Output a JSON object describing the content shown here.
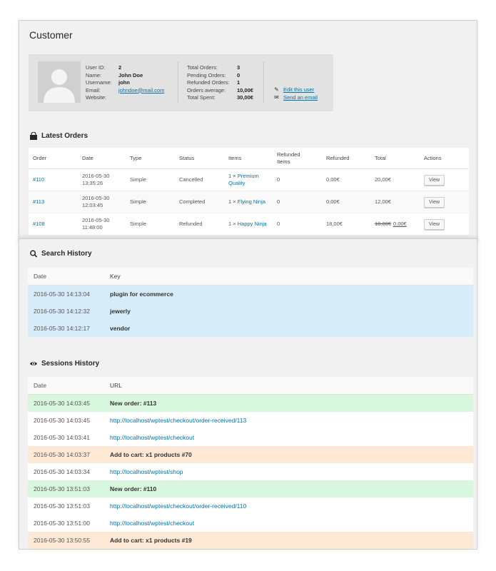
{
  "customer": {
    "title": "Customer",
    "info": [
      {
        "label": "User ID:",
        "value": "2"
      },
      {
        "label": "Name:",
        "value": "John Doe"
      },
      {
        "label": "Username:",
        "value": "john"
      },
      {
        "label": "Email:",
        "value": "johndoe@mail.com"
      },
      {
        "label": "Website:",
        "value": ""
      }
    ],
    "stats": [
      {
        "label": "Total Orders:",
        "value": "3"
      },
      {
        "label": "Pending Orders:",
        "value": "0"
      },
      {
        "label": "Refunded Orders:",
        "value": "1"
      },
      {
        "label": "Orders average:",
        "value": "10,00€"
      },
      {
        "label": "Total Spent:",
        "value": "30,00€"
      }
    ],
    "actions": {
      "edit_label": "Edit this user",
      "email_label": "Send an email"
    }
  },
  "latest_orders": {
    "heading": "Latest Orders",
    "columns": [
      "Order",
      "Date",
      "Type",
      "Status",
      "Items",
      "Refunded Items",
      "Refunded",
      "Total",
      "Actions"
    ],
    "rows": [
      {
        "order": "#110",
        "date": "2016-05-30",
        "time": "13:35:26",
        "type": "Simple",
        "status": "Cancelled",
        "qty": "1 ×",
        "item": "Premium Quality",
        "refunded_items": "0",
        "refunded": "0,00€",
        "total": "20,00€",
        "total_old": "",
        "action": "View"
      },
      {
        "order": "#113",
        "date": "2016-05-30",
        "time": "12:03:45",
        "type": "Simple",
        "status": "Completed",
        "qty": "1 ×",
        "item": "Flying Ninja",
        "refunded_items": "0",
        "refunded": "0,00€",
        "total": "12,00€",
        "total_old": "",
        "action": "View"
      },
      {
        "order": "#108",
        "date": "2016-05-30",
        "time": "11:48:00",
        "type": "Simple",
        "status": "Refunded",
        "qty": "1 ×",
        "item": "Happy Ninja",
        "refunded_items": "0",
        "refunded": "18,00€",
        "total": "0,00€",
        "total_old": "18,00€",
        "action": "View"
      }
    ]
  },
  "search_history": {
    "heading": "Search History",
    "columns": [
      "Date",
      "Key"
    ],
    "rows": [
      {
        "date": "2016-05-30 14:13:04",
        "key": "plugin for ecommerce"
      },
      {
        "date": "2016-05-30 14:12:32",
        "key": "jewerly"
      },
      {
        "date": "2016-05-30 14:12:17",
        "key": "vendor"
      }
    ]
  },
  "sessions_history": {
    "heading": "Sessions History",
    "columns": [
      "Date",
      "URL"
    ],
    "rows": [
      {
        "date": "2016-05-30 14:03:45",
        "url": "New order: #113",
        "kind": "order"
      },
      {
        "date": "2016-05-30 14:03:45",
        "url": "http://localhost/wptest/checkout/order-received/113",
        "kind": "link"
      },
      {
        "date": "2016-05-30 14:03:41",
        "url": "http://localhost/wptest/checkout",
        "kind": "link"
      },
      {
        "date": "2016-05-30 14:03:37",
        "url": "Add to cart: x1 products #70",
        "kind": "cart"
      },
      {
        "date": "2016-05-30 14:03:34",
        "url": "http://localhost/wptest/shop",
        "kind": "link"
      },
      {
        "date": "2016-05-30 13:51:03",
        "url": "New order: #110",
        "kind": "order"
      },
      {
        "date": "2016-05-30 13:51:03",
        "url": "http://localhost/wptest/checkout/order-received/110",
        "kind": "link"
      },
      {
        "date": "2016-05-30 13:51:00",
        "url": "http://localhost/wptest/checkout",
        "kind": "link"
      },
      {
        "date": "2016-05-30 13:50:55",
        "url": "Add to cart: x1 products #19",
        "kind": "cart"
      }
    ]
  },
  "colors": {
    "link": "#0073aa",
    "search_row": "#d6ecf9",
    "order_row": "#d9f7de",
    "cart_row": "#fde9d5"
  },
  "icons": {
    "latest_orders": "shopping-bag-icon",
    "search": "search-icon",
    "sessions": "eye-icon",
    "edit": "pencil-icon",
    "email": "envelope-icon"
  }
}
